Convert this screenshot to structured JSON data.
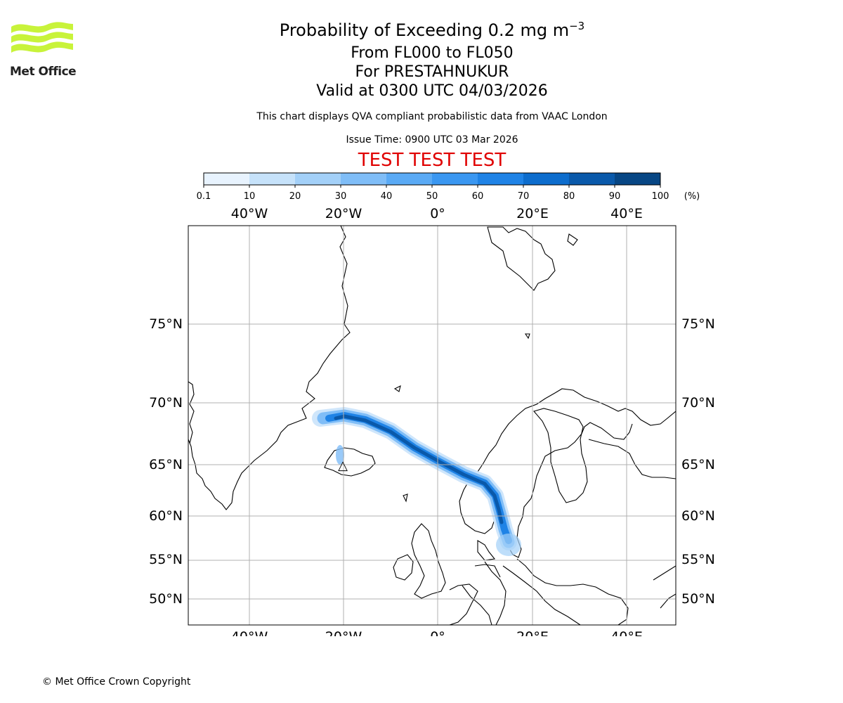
{
  "logo": {
    "text": "Met Office",
    "color": "#c8f33a"
  },
  "header": {
    "title_main": "Probability of Exceeding 0.2 mg m",
    "title_sup": "−3",
    "from_to": "From FL000 to FL050",
    "location": "For PRESTAHNUKUR",
    "valid": "Valid at 0300 UTC 04/03/2026",
    "description": "This chart displays QVA compliant probabilistic data from VAAC London",
    "issue_time": "Issue Time: 0900 UTC 03 Mar 2026",
    "test_banner": "TEST TEST TEST"
  },
  "colorbar": {
    "ticks": [
      "0.1",
      "10",
      "20",
      "30",
      "40",
      "50",
      "60",
      "70",
      "80",
      "90",
      "100"
    ],
    "unit": "(%)",
    "colors": [
      "#e8f3fe",
      "#c6e2fa",
      "#a3d0f8",
      "#7fbdf7",
      "#5aaaf5",
      "#3a97f1",
      "#1f83e6",
      "#0d6dcd",
      "#0a59aa",
      "#074684",
      "#04305b"
    ]
  },
  "map": {
    "lon_labels": [
      "40°W",
      "20°W",
      "0°",
      "20°E",
      "40°E"
    ],
    "lat_labels": [
      "75°N",
      "70°N",
      "65°N",
      "60°N",
      "55°N",
      "50°N"
    ],
    "source_marker": "△"
  },
  "footer": {
    "copyright": "© Met Office Crown Copyright"
  }
}
